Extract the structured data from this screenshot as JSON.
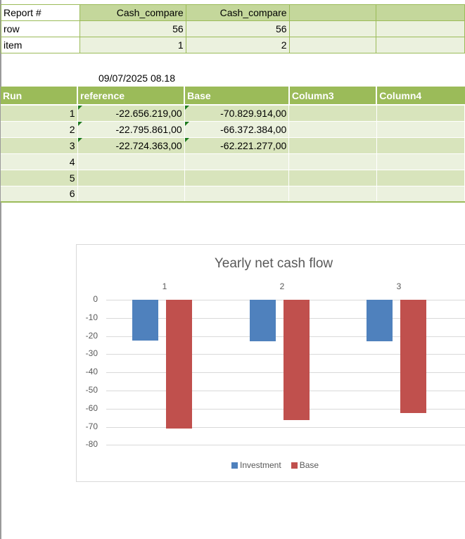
{
  "top_table": {
    "rows": [
      {
        "label": "Report #",
        "c1": "Cash_compare",
        "c2": "Cash_compare",
        "c3": "",
        "c4": ""
      },
      {
        "label": "row",
        "c1": "56",
        "c2": "56",
        "c3": "",
        "c4": ""
      },
      {
        "label": "item",
        "c1": "1",
        "c2": "2",
        "c3": "",
        "c4": ""
      }
    ]
  },
  "timestamp": "09/07/2025 08.18",
  "runs_table": {
    "headers": [
      "Run",
      "reference",
      "Base",
      "Column3",
      "Column4"
    ],
    "rows": [
      {
        "run": "1",
        "reference": "-22.656.219,00",
        "base": "-70.829.914,00",
        "c3": "",
        "c4": ""
      },
      {
        "run": "2",
        "reference": "-22.795.861,00",
        "base": "-66.372.384,00",
        "c3": "",
        "c4": ""
      },
      {
        "run": "3",
        "reference": "-22.724.363,00",
        "base": "-62.221.277,00",
        "c3": "",
        "c4": ""
      },
      {
        "run": "4",
        "reference": "",
        "base": "",
        "c3": "",
        "c4": ""
      },
      {
        "run": "5",
        "reference": "",
        "base": "",
        "c3": "",
        "c4": ""
      },
      {
        "run": "6",
        "reference": "",
        "base": "",
        "c3": "",
        "c4": ""
      }
    ]
  },
  "colors": {
    "header_green": "#9bbb59",
    "band_dark": "#d8e4bc",
    "band_light": "#ebf1de",
    "investment": "#4f81bd",
    "base": "#c0504d"
  },
  "chart_data": {
    "type": "bar",
    "title": "Yearly net cash flow",
    "categories": [
      "1",
      "2",
      "3"
    ],
    "series": [
      {
        "name": "Investment",
        "values": [
          -22.66,
          -22.8,
          -22.72
        ],
        "color": "#4f81bd"
      },
      {
        "name": "Base",
        "values": [
          -70.83,
          -66.37,
          -62.22
        ],
        "color": "#c0504d"
      }
    ],
    "xlabel": "",
    "ylabel": "",
    "ylim": [
      -80,
      0
    ],
    "yticks": [
      "0",
      "-10",
      "-20",
      "-30",
      "-40",
      "-50",
      "-60",
      "-70",
      "-80"
    ],
    "grid": true,
    "legend_position": "bottom",
    "category_labels_position": "top"
  }
}
